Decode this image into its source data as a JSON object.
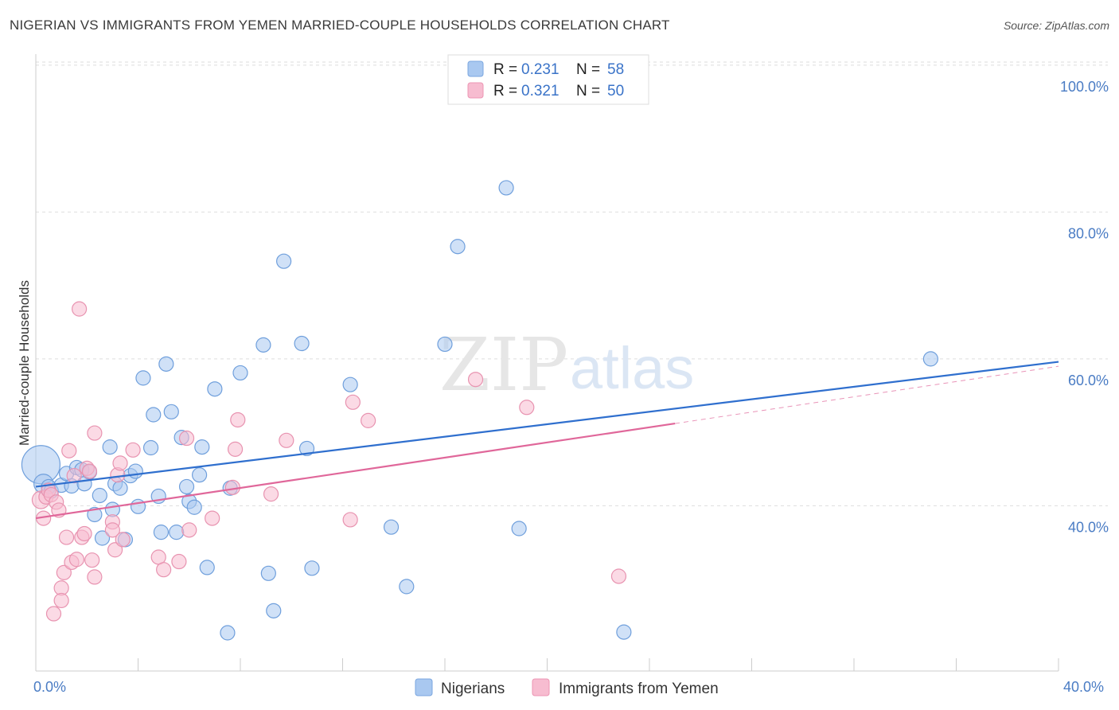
{
  "header": {
    "title": "NIGERIAN VS IMMIGRANTS FROM YEMEN MARRIED-COUPLE HOUSEHOLDS CORRELATION CHART",
    "source": "Source: ZipAtlas.com"
  },
  "watermark": {
    "zip": "ZIP",
    "atlas": "atlas"
  },
  "legend_top": [
    {
      "r_label": "R =",
      "r_value": "0.231",
      "n_label": "N =",
      "n_value": "58",
      "color": "#a9c8f0",
      "stroke": "#7aa6df"
    },
    {
      "r_label": "R =",
      "r_value": "0.321",
      "n_label": "N =",
      "n_value": "50",
      "color": "#f7bcd0",
      "stroke": "#ec95b3"
    }
  ],
  "chart_data": {
    "type": "scatter",
    "title": "NIGERIAN VS IMMIGRANTS FROM YEMEN MARRIED-COUPLE HOUSEHOLDS CORRELATION CHART",
    "xlabel": "",
    "ylabel": "Married-couple Households",
    "xlim": [
      0,
      40
    ],
    "ylim": [
      17.5,
      101.5
    ],
    "x_tick_labels": [
      "0.0%",
      "40.0%"
    ],
    "y_ticks": [
      40,
      60,
      80,
      100
    ],
    "y_tick_labels": [
      "40.0%",
      "60.0%",
      "80.0%",
      "100.0%"
    ],
    "grid": true,
    "legend_position": "top-center",
    "series": [
      {
        "name": "Nigerians",
        "color": "#a9c8f0",
        "stroke": "#6f9fdc",
        "line_color": "#2f6fce",
        "trend": {
          "x": [
            0,
            40
          ],
          "y": [
            42.6,
            59.6
          ]
        },
        "points": [
          [
            0.2,
            45.6,
            24
          ],
          [
            0.3,
            43.0,
            12
          ],
          [
            0.5,
            42.6,
            9
          ],
          [
            0.6,
            42.0,
            9
          ],
          [
            1.0,
            42.8,
            9
          ],
          [
            1.2,
            44.4,
            9
          ],
          [
            1.4,
            42.7,
            9
          ],
          [
            1.6,
            45.2,
            9
          ],
          [
            1.8,
            44.9,
            9
          ],
          [
            1.9,
            43.0,
            9
          ],
          [
            2.1,
            44.6,
            9
          ],
          [
            2.3,
            38.8,
            9
          ],
          [
            2.5,
            41.4,
            9
          ],
          [
            2.6,
            35.6,
            9
          ],
          [
            2.9,
            48.0,
            9
          ],
          [
            3.0,
            39.5,
            9
          ],
          [
            3.1,
            43.0,
            9
          ],
          [
            3.3,
            42.4,
            9
          ],
          [
            3.5,
            35.4,
            9
          ],
          [
            3.7,
            44.1,
            9
          ],
          [
            3.9,
            44.7,
            9
          ],
          [
            4.0,
            39.9,
            9
          ],
          [
            4.2,
            57.4,
            9
          ],
          [
            4.5,
            47.9,
            9
          ],
          [
            4.6,
            52.4,
            9
          ],
          [
            4.8,
            41.3,
            9
          ],
          [
            4.9,
            36.4,
            9
          ],
          [
            5.1,
            59.3,
            9
          ],
          [
            5.3,
            52.8,
            9
          ],
          [
            5.5,
            36.4,
            9
          ],
          [
            5.7,
            49.3,
            9
          ],
          [
            5.9,
            42.6,
            9
          ],
          [
            6.0,
            40.6,
            9
          ],
          [
            6.2,
            39.8,
            9
          ],
          [
            6.4,
            44.2,
            9
          ],
          [
            6.5,
            48.0,
            9
          ],
          [
            6.7,
            31.6,
            9
          ],
          [
            7.0,
            55.9,
            9
          ],
          [
            7.5,
            22.7,
            9
          ],
          [
            7.6,
            42.4,
            9
          ],
          [
            8.0,
            58.1,
            9
          ],
          [
            8.9,
            61.9,
            9
          ],
          [
            9.1,
            30.8,
            9
          ],
          [
            9.3,
            25.7,
            9
          ],
          [
            9.7,
            73.3,
            9
          ],
          [
            10.4,
            62.1,
            9
          ],
          [
            10.6,
            47.8,
            9
          ],
          [
            10.8,
            31.5,
            9
          ],
          [
            12.3,
            56.5,
            9
          ],
          [
            13.9,
            37.1,
            9
          ],
          [
            14.5,
            29.0,
            9
          ],
          [
            16.0,
            62.0,
            9
          ],
          [
            16.5,
            75.3,
            9
          ],
          [
            18.4,
            83.3,
            9
          ],
          [
            18.9,
            36.9,
            9
          ],
          [
            23.0,
            22.8,
            9
          ],
          [
            35.0,
            60.0,
            9
          ]
        ]
      },
      {
        "name": "Immigrants from Yemen",
        "color": "#f7bcd0",
        "stroke": "#e893b0",
        "line_color": "#e0679a",
        "trend": {
          "x": [
            0,
            25
          ],
          "y": [
            38.3,
            51.2
          ]
        },
        "trend_extension": {
          "x": [
            25,
            40
          ],
          "y": [
            51.2,
            59.0
          ]
        },
        "points": [
          [
            0.2,
            40.8,
            11
          ],
          [
            0.3,
            38.3,
            9
          ],
          [
            0.4,
            41.2,
            9
          ],
          [
            0.5,
            42.1,
            9
          ],
          [
            0.6,
            41.5,
            9
          ],
          [
            0.7,
            25.3,
            9
          ],
          [
            0.8,
            40.5,
            9
          ],
          [
            0.9,
            39.4,
            9
          ],
          [
            1.0,
            28.8,
            9
          ],
          [
            1.0,
            27.1,
            9
          ],
          [
            1.1,
            30.9,
            9
          ],
          [
            1.2,
            35.7,
            9
          ],
          [
            1.3,
            47.5,
            9
          ],
          [
            1.4,
            32.3,
            9
          ],
          [
            1.5,
            44.1,
            9
          ],
          [
            1.6,
            32.7,
            9
          ],
          [
            1.7,
            66.8,
            9
          ],
          [
            1.8,
            35.7,
            9
          ],
          [
            1.9,
            36.2,
            9
          ],
          [
            2.0,
            45.1,
            9
          ],
          [
            2.1,
            44.7,
            9
          ],
          [
            2.2,
            32.6,
            9
          ],
          [
            2.3,
            30.3,
            9
          ],
          [
            2.3,
            49.9,
            9
          ],
          [
            3.0,
            37.8,
            9
          ],
          [
            3.0,
            36.7,
            9
          ],
          [
            3.1,
            34.0,
            9
          ],
          [
            3.2,
            44.2,
            9
          ],
          [
            3.3,
            45.8,
            9
          ],
          [
            3.4,
            35.4,
            9
          ],
          [
            3.8,
            47.6,
            9
          ],
          [
            4.8,
            33.0,
            9
          ],
          [
            5.0,
            31.3,
            9
          ],
          [
            5.6,
            32.4,
            9
          ],
          [
            5.9,
            49.2,
            9
          ],
          [
            6.0,
            36.7,
            9
          ],
          [
            6.9,
            38.3,
            9
          ],
          [
            7.7,
            42.5,
            9
          ],
          [
            7.8,
            47.7,
            9
          ],
          [
            7.9,
            51.7,
            9
          ],
          [
            9.2,
            41.6,
            9
          ],
          [
            9.8,
            48.9,
            9
          ],
          [
            12.3,
            38.1,
            9
          ],
          [
            12.4,
            54.1,
            9
          ],
          [
            13.0,
            51.6,
            9
          ],
          [
            17.2,
            57.2,
            9
          ],
          [
            19.2,
            53.4,
            9
          ],
          [
            22.8,
            30.4,
            9
          ]
        ]
      }
    ]
  },
  "legend_bottom": [
    {
      "label": "Nigerians",
      "color": "#a9c8f0",
      "stroke": "#7aa6df"
    },
    {
      "label": "Immigrants from Yemen",
      "color": "#f7bcd0",
      "stroke": "#ec95b3"
    }
  ]
}
